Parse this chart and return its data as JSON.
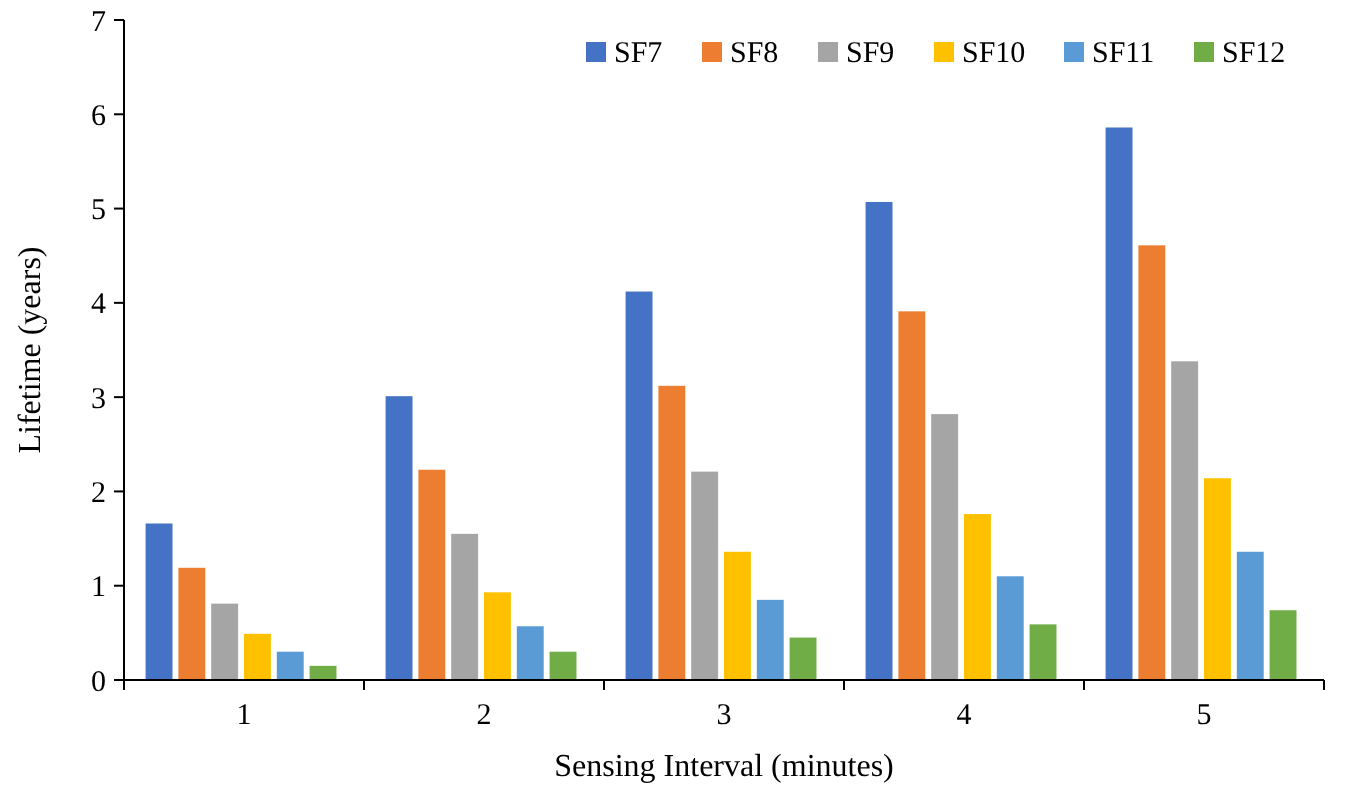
{
  "chart_data": {
    "type": "bar",
    "xlabel": "Sensing Interval (minutes)",
    "ylabel": "Lifetime (years)",
    "categories": [
      "1",
      "2",
      "3",
      "4",
      "5"
    ],
    "series": [
      {
        "name": "SF7",
        "color": "#4472c4",
        "values": [
          1.66,
          3.01,
          4.12,
          5.07,
          5.86
        ]
      },
      {
        "name": "SF8",
        "color": "#ed7d31",
        "values": [
          1.19,
          2.23,
          3.12,
          3.91,
          4.61
        ]
      },
      {
        "name": "SF9",
        "color": "#a5a5a5",
        "values": [
          0.81,
          1.55,
          2.21,
          2.82,
          3.38
        ]
      },
      {
        "name": "SF10",
        "color": "#ffc000",
        "values": [
          0.49,
          0.93,
          1.36,
          1.76,
          2.14
        ]
      },
      {
        "name": "SF11",
        "color": "#5b9bd5",
        "values": [
          0.3,
          0.57,
          0.85,
          1.1,
          1.36
        ]
      },
      {
        "name": "SF12",
        "color": "#70ad47",
        "values": [
          0.15,
          0.3,
          0.45,
          0.59,
          0.74
        ]
      }
    ],
    "ylim": [
      0,
      7
    ],
    "yticks": [
      0,
      1,
      2,
      3,
      4,
      5,
      6,
      7
    ],
    "grid": false,
    "legend": "top right"
  }
}
